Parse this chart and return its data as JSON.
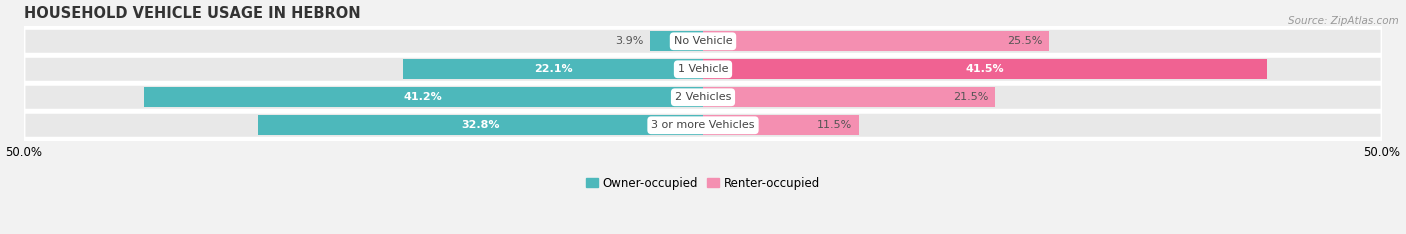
{
  "title": "HOUSEHOLD VEHICLE USAGE IN HEBRON",
  "source": "Source: ZipAtlas.com",
  "categories": [
    "No Vehicle",
    "1 Vehicle",
    "2 Vehicles",
    "3 or more Vehicles"
  ],
  "owner_values": [
    3.9,
    22.1,
    41.2,
    32.8
  ],
  "renter_values": [
    25.5,
    41.5,
    21.5,
    11.5
  ],
  "owner_color": "#4db8bb",
  "renter_color": "#f48fb1",
  "renter_color_dark": "#f06292",
  "owner_label": "Owner-occupied",
  "renter_label": "Renter-occupied",
  "xlim": 50.0,
  "bg_color": "#f2f2f2",
  "bar_bg_color": "#e0e0e0",
  "row_bg_color": "#e8e8e8",
  "title_fontsize": 10.5,
  "source_fontsize": 7.5,
  "axis_fontsize": 8.5,
  "label_fontsize": 8.0,
  "category_fontsize": 8.0,
  "outside_label_threshold": 8.0
}
